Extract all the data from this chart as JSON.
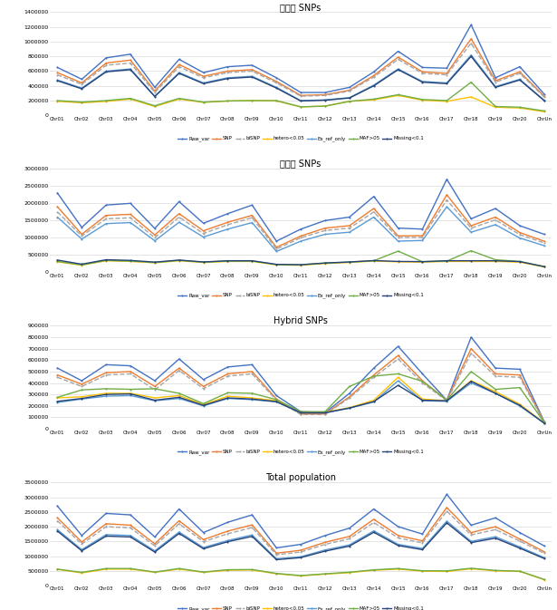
{
  "chromosomes": [
    "Chr01",
    "Chr02",
    "Chr03",
    "Chr04",
    "Chr05",
    "Chr06",
    "Chr07",
    "Chr08",
    "Chr09",
    "Chr10",
    "Chr11",
    "Chr12",
    "Chr13",
    "Chr14",
    "Chr15",
    "Chr16",
    "Chr17",
    "Chr18",
    "Chr19",
    "Chr20",
    "ChrUn"
  ],
  "panels": [
    {
      "title": "재배콩 SNPs",
      "ylim": [
        0,
        1400000
      ],
      "yticks": [
        0,
        200000,
        400000,
        600000,
        800000,
        1000000,
        1200000,
        1400000
      ],
      "series": {
        "Raw_var": [
          650000,
          490000,
          780000,
          830000,
          380000,
          760000,
          580000,
          660000,
          680000,
          510000,
          310000,
          310000,
          380000,
          590000,
          870000,
          650000,
          640000,
          1230000,
          510000,
          660000,
          290000
        ],
        "SNP": [
          580000,
          440000,
          710000,
          750000,
          330000,
          690000,
          530000,
          600000,
          620000,
          460000,
          270000,
          280000,
          340000,
          540000,
          790000,
          590000,
          570000,
          1040000,
          470000,
          590000,
          260000
        ],
        "biSNP": [
          550000,
          420000,
          680000,
          710000,
          310000,
          660000,
          510000,
          580000,
          600000,
          440000,
          260000,
          270000,
          330000,
          520000,
          760000,
          570000,
          550000,
          980000,
          450000,
          570000,
          250000
        ],
        "hetero<0.05": [
          190000,
          170000,
          190000,
          220000,
          120000,
          220000,
          175000,
          195000,
          200000,
          195000,
          115000,
          125000,
          190000,
          210000,
          270000,
          205000,
          190000,
          250000,
          110000,
          100000,
          50000
        ],
        "Ex_ref_only": [
          480000,
          370000,
          600000,
          630000,
          260000,
          580000,
          440000,
          510000,
          530000,
          380000,
          200000,
          210000,
          240000,
          410000,
          630000,
          460000,
          440000,
          820000,
          390000,
          490000,
          205000
        ],
        "MAF>05": [
          200000,
          180000,
          200000,
          230000,
          130000,
          230000,
          180000,
          195000,
          200000,
          200000,
          115000,
          125000,
          190000,
          220000,
          280000,
          215000,
          200000,
          450000,
          120000,
          110000,
          60000
        ],
        "Missing<0.1": [
          470000,
          360000,
          590000,
          620000,
          255000,
          570000,
          430000,
          500000,
          520000,
          370000,
          195000,
          205000,
          235000,
          400000,
          620000,
          450000,
          430000,
          800000,
          380000,
          480000,
          200000
        ]
      }
    },
    {
      "title": "야생콩 SNPs",
      "ylim": [
        0,
        3000000
      ],
      "yticks": [
        0,
        500000,
        1000000,
        1500000,
        2000000,
        2500000,
        3000000
      ],
      "series": {
        "Raw_var": [
          2300000,
          1300000,
          1950000,
          2000000,
          1270000,
          2050000,
          1420000,
          1700000,
          1950000,
          900000,
          1250000,
          1500000,
          1600000,
          2200000,
          1280000,
          1250000,
          2700000,
          1550000,
          1850000,
          1350000,
          1100000
        ],
        "SNP": [
          1900000,
          1100000,
          1650000,
          1680000,
          1080000,
          1700000,
          1200000,
          1450000,
          1650000,
          720000,
          1050000,
          1280000,
          1350000,
          1850000,
          1050000,
          1060000,
          2250000,
          1350000,
          1600000,
          1150000,
          900000
        ],
        "biSNP": [
          1750000,
          1050000,
          1550000,
          1580000,
          1000000,
          1600000,
          1120000,
          1380000,
          1580000,
          670000,
          1000000,
          1210000,
          1280000,
          1750000,
          1000000,
          1010000,
          2100000,
          1280000,
          1520000,
          1090000,
          850000
        ],
        "hetero<0.05": [
          300000,
          200000,
          330000,
          310000,
          270000,
          330000,
          280000,
          310000,
          310000,
          210000,
          200000,
          250000,
          280000,
          320000,
          300000,
          290000,
          310000,
          310000,
          310000,
          290000,
          150000
        ],
        "Ex_ref_only": [
          1600000,
          960000,
          1410000,
          1440000,
          910000,
          1450000,
          1020000,
          1250000,
          1440000,
          600000,
          900000,
          1100000,
          1160000,
          1600000,
          900000,
          920000,
          1900000,
          1160000,
          1380000,
          990000,
          770000
        ],
        "MAF>05": [
          310000,
          210000,
          340000,
          320000,
          280000,
          340000,
          290000,
          320000,
          320000,
          220000,
          210000,
          260000,
          290000,
          330000,
          610000,
          300000,
          320000,
          620000,
          360000,
          310000,
          160000
        ],
        "Missing<0.1": [
          350000,
          230000,
          360000,
          340000,
          290000,
          350000,
          295000,
          330000,
          330000,
          225000,
          215000,
          265000,
          295000,
          335000,
          310000,
          305000,
          330000,
          330000,
          330000,
          305000,
          160000
        ]
      }
    },
    {
      "title": "Hybrid SNPs",
      "ylim": [
        0,
        900000
      ],
      "yticks": [
        0,
        100000,
        200000,
        300000,
        400000,
        500000,
        600000,
        700000,
        800000,
        900000
      ],
      "series": {
        "Raw_var": [
          530000,
          420000,
          560000,
          550000,
          420000,
          610000,
          430000,
          540000,
          560000,
          290000,
          150000,
          140000,
          310000,
          530000,
          720000,
          480000,
          250000,
          800000,
          530000,
          520000,
          65000
        ],
        "SNP": [
          470000,
          390000,
          490000,
          500000,
          370000,
          530000,
          370000,
          480000,
          500000,
          260000,
          130000,
          130000,
          280000,
          470000,
          640000,
          420000,
          250000,
          700000,
          480000,
          470000,
          60000
        ],
        "biSNP": [
          450000,
          370000,
          470000,
          480000,
          340000,
          510000,
          350000,
          460000,
          480000,
          250000,
          125000,
          125000,
          270000,
          450000,
          610000,
          400000,
          245000,
          660000,
          460000,
          450000,
          58000
        ],
        "hetero<0.05": [
          270000,
          280000,
          310000,
          310000,
          270000,
          290000,
          210000,
          285000,
          270000,
          245000,
          145000,
          145000,
          185000,
          250000,
          450000,
          260000,
          245000,
          420000,
          325000,
          215000,
          52000
        ],
        "Ex_ref_only": [
          230000,
          260000,
          285000,
          290000,
          245000,
          265000,
          200000,
          265000,
          255000,
          235000,
          140000,
          140000,
          180000,
          235000,
          420000,
          245000,
          240000,
          400000,
          310000,
          200000,
          50000
        ],
        "MAF>05": [
          275000,
          340000,
          350000,
          345000,
          350000,
          310000,
          220000,
          315000,
          310000,
          255000,
          150000,
          150000,
          370000,
          460000,
          480000,
          415000,
          250000,
          500000,
          345000,
          360000,
          57000
        ],
        "Missing<0.1": [
          240000,
          265000,
          300000,
          305000,
          250000,
          275000,
          205000,
          270000,
          260000,
          238000,
          140000,
          140000,
          182000,
          238000,
          380000,
          250000,
          245000,
          415000,
          310000,
          205000,
          50000
        ]
      }
    },
    {
      "title": "Total population",
      "ylim": [
        0,
        3500000
      ],
      "yticks": [
        0,
        500000,
        1000000,
        1500000,
        2000000,
        2500000,
        3000000,
        3500000
      ],
      "series": {
        "Raw_var": [
          2700000,
          1700000,
          2450000,
          2400000,
          1650000,
          2600000,
          1800000,
          2150000,
          2400000,
          1280000,
          1400000,
          1700000,
          1950000,
          2600000,
          2000000,
          1750000,
          3100000,
          2050000,
          2300000,
          1800000,
          1350000
        ],
        "SNP": [
          2300000,
          1480000,
          2100000,
          2050000,
          1420000,
          2200000,
          1560000,
          1850000,
          2060000,
          1100000,
          1200000,
          1470000,
          1670000,
          2250000,
          1700000,
          1520000,
          2650000,
          1800000,
          2000000,
          1580000,
          1150000
        ],
        "biSNP": [
          2200000,
          1410000,
          2000000,
          1960000,
          1350000,
          2100000,
          1490000,
          1760000,
          1970000,
          1050000,
          1140000,
          1400000,
          1590000,
          2140000,
          1620000,
          1450000,
          2530000,
          1720000,
          1900000,
          1510000,
          1100000
        ],
        "hetero<0.05": [
          550000,
          430000,
          560000,
          560000,
          450000,
          560000,
          450000,
          520000,
          530000,
          400000,
          330000,
          390000,
          440000,
          520000,
          560000,
          490000,
          480000,
          570000,
          500000,
          480000,
          200000
        ],
        "Ex_ref_only": [
          1900000,
          1220000,
          1730000,
          1700000,
          1180000,
          1820000,
          1290000,
          1530000,
          1720000,
          910000,
          980000,
          1210000,
          1380000,
          1860000,
          1400000,
          1260000,
          2190000,
          1500000,
          1660000,
          1310000,
          950000
        ],
        "MAF>05": [
          560000,
          450000,
          580000,
          580000,
          460000,
          580000,
          460000,
          540000,
          545000,
          415000,
          340000,
          400000,
          455000,
          535000,
          580000,
          505000,
          500000,
          590000,
          515000,
          490000,
          210000
        ],
        "Missing<0.1": [
          1850000,
          1180000,
          1680000,
          1650000,
          1140000,
          1770000,
          1250000,
          1490000,
          1670000,
          880000,
          950000,
          1170000,
          1340000,
          1810000,
          1360000,
          1220000,
          2130000,
          1460000,
          1610000,
          1270000,
          920000
        ]
      }
    }
  ],
  "line_styles": {
    "Raw_var": {
      "color": "#4472C4",
      "style": "-",
      "marker": "o",
      "ms": 1.5,
      "lw": 1.0
    },
    "SNP": {
      "color": "#ED7D31",
      "style": "-",
      "marker": "o",
      "ms": 1.5,
      "lw": 1.0
    },
    "biSNP": {
      "color": "#A5A5A5",
      "style": "--",
      "marker": "o",
      "ms": 1.5,
      "lw": 1.0
    },
    "hetero<0.05": {
      "color": "#FFC000",
      "style": "-",
      "marker": "o",
      "ms": 1.5,
      "lw": 1.0
    },
    "Ex_ref_only": {
      "color": "#5B9BD5",
      "style": "-",
      "marker": "o",
      "ms": 1.5,
      "lw": 1.0
    },
    "MAF>05": {
      "color": "#70AD47",
      "style": "-",
      "marker": "o",
      "ms": 1.5,
      "lw": 1.0
    },
    "Missing<0.1": {
      "color": "#264478",
      "style": "-",
      "marker": "o",
      "ms": 1.5,
      "lw": 1.0
    }
  },
  "legend_labels": [
    "Raw_var",
    "SNP",
    "biSNP",
    "hetero<0.05",
    "Ex_ref_only",
    "MAF>05",
    "Missing<0.1"
  ],
  "background_color": "#FFFFFF",
  "grid_color": "#D9D9D9"
}
